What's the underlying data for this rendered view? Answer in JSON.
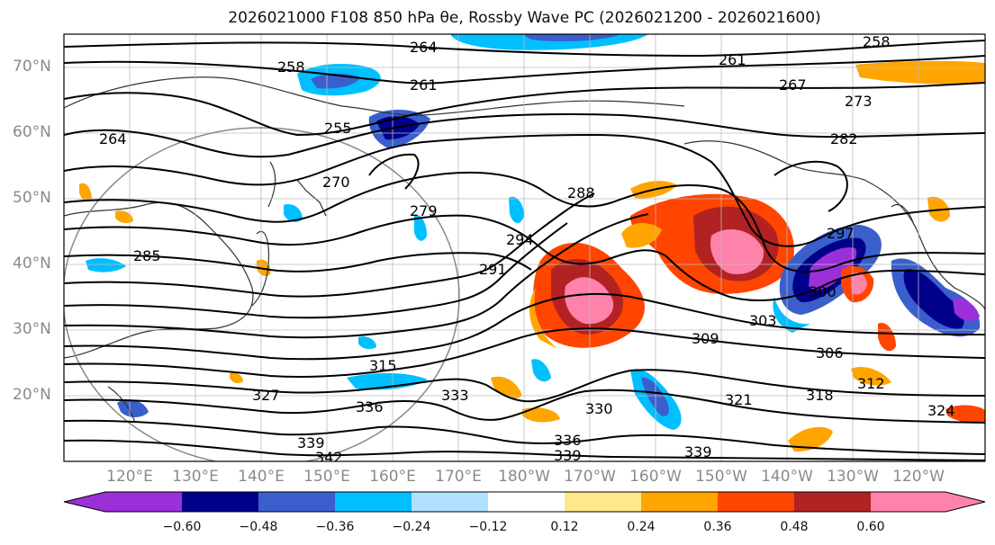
{
  "title": "2026021000 F108 850 hPa θe, Rossby Wave PC (2026021200 - 2026021600)",
  "map": {
    "lat_labels": [
      "70°N",
      "60°N",
      "50°N",
      "40°N",
      "30°N",
      "20°N"
    ],
    "lon_labels": [
      "120°E",
      "130°E",
      "140°E",
      "150°E",
      "160°E",
      "170°E",
      "180°W",
      "170°W",
      "160°W",
      "150°W",
      "140°W",
      "130°W",
      "120°W"
    ],
    "contour_labels": [
      "264",
      "258",
      "258",
      "261",
      "261",
      "267",
      "273",
      "264",
      "255",
      "270",
      "279",
      "282",
      "285",
      "288",
      "291",
      "294",
      "297",
      "300",
      "303",
      "306",
      "309",
      "312",
      "315",
      "318",
      "321",
      "324",
      "327",
      "330",
      "333",
      "336",
      "336",
      "339",
      "339",
      "339",
      "342"
    ]
  },
  "colorbar": {
    "ticks": [
      "−0.60",
      "−0.48",
      "−0.36",
      "−0.24",
      "−0.12",
      "0.12",
      "0.24",
      "0.36",
      "0.48",
      "0.60"
    ],
    "colors": [
      "#9b30d9",
      "#00008b",
      "#3a5fcd",
      "#00bfff",
      "#b0e2ff",
      "#ffffff",
      "#ffe98a",
      "#ffa500",
      "#ff4500",
      "#b22222",
      "#ff82ab",
      "#ff82ab"
    ]
  }
}
